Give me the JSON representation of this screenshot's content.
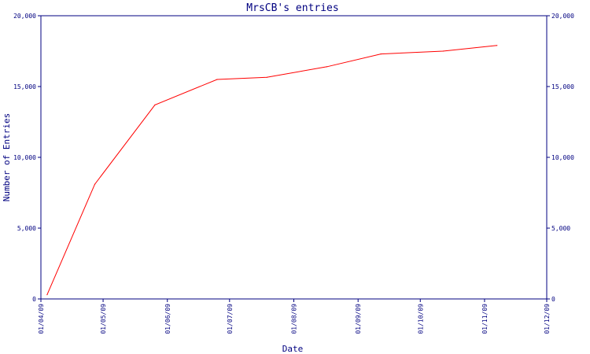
{
  "chart_data": {
    "type": "line",
    "title": "MrsCB's entries",
    "xlabel": "Date",
    "ylabel": "Number of Entries",
    "ylim": [
      0,
      20000
    ],
    "xlim": [
      "2009-04-01",
      "2009-12-01"
    ],
    "y_ticks": [
      "0",
      "5,000",
      "10,000",
      "15,000",
      "20,000"
    ],
    "y_tick_values": [
      0,
      5000,
      10000,
      15000,
      20000
    ],
    "x_ticks": [
      "01/04/09",
      "01/05/09",
      "01/06/09",
      "01/07/09",
      "01/08/09",
      "01/09/09",
      "01/10/09",
      "01/11/09",
      "01/12/09"
    ],
    "x_tick_dates": [
      "2009-04-01",
      "2009-05-01",
      "2009-06-01",
      "2009-07-01",
      "2009-08-01",
      "2009-09-01",
      "2009-10-01",
      "2009-11-01",
      "2009-12-01"
    ],
    "grid": false,
    "series": [
      {
        "color": "#ff0000",
        "points": [
          {
            "x": "2009-04-04",
            "y": 300
          },
          {
            "x": "2009-04-27",
            "y": 8100
          },
          {
            "x": "2009-05-26",
            "y": 13700
          },
          {
            "x": "2009-06-25",
            "y": 15500
          },
          {
            "x": "2009-07-19",
            "y": 15650
          },
          {
            "x": "2009-08-17",
            "y": 16400
          },
          {
            "x": "2009-09-12",
            "y": 17300
          },
          {
            "x": "2009-10-12",
            "y": 17500
          },
          {
            "x": "2009-11-07",
            "y": 17900
          }
        ]
      }
    ],
    "colors": {
      "axis": "#000080",
      "text": "#000080",
      "line": "#ff0000"
    }
  }
}
